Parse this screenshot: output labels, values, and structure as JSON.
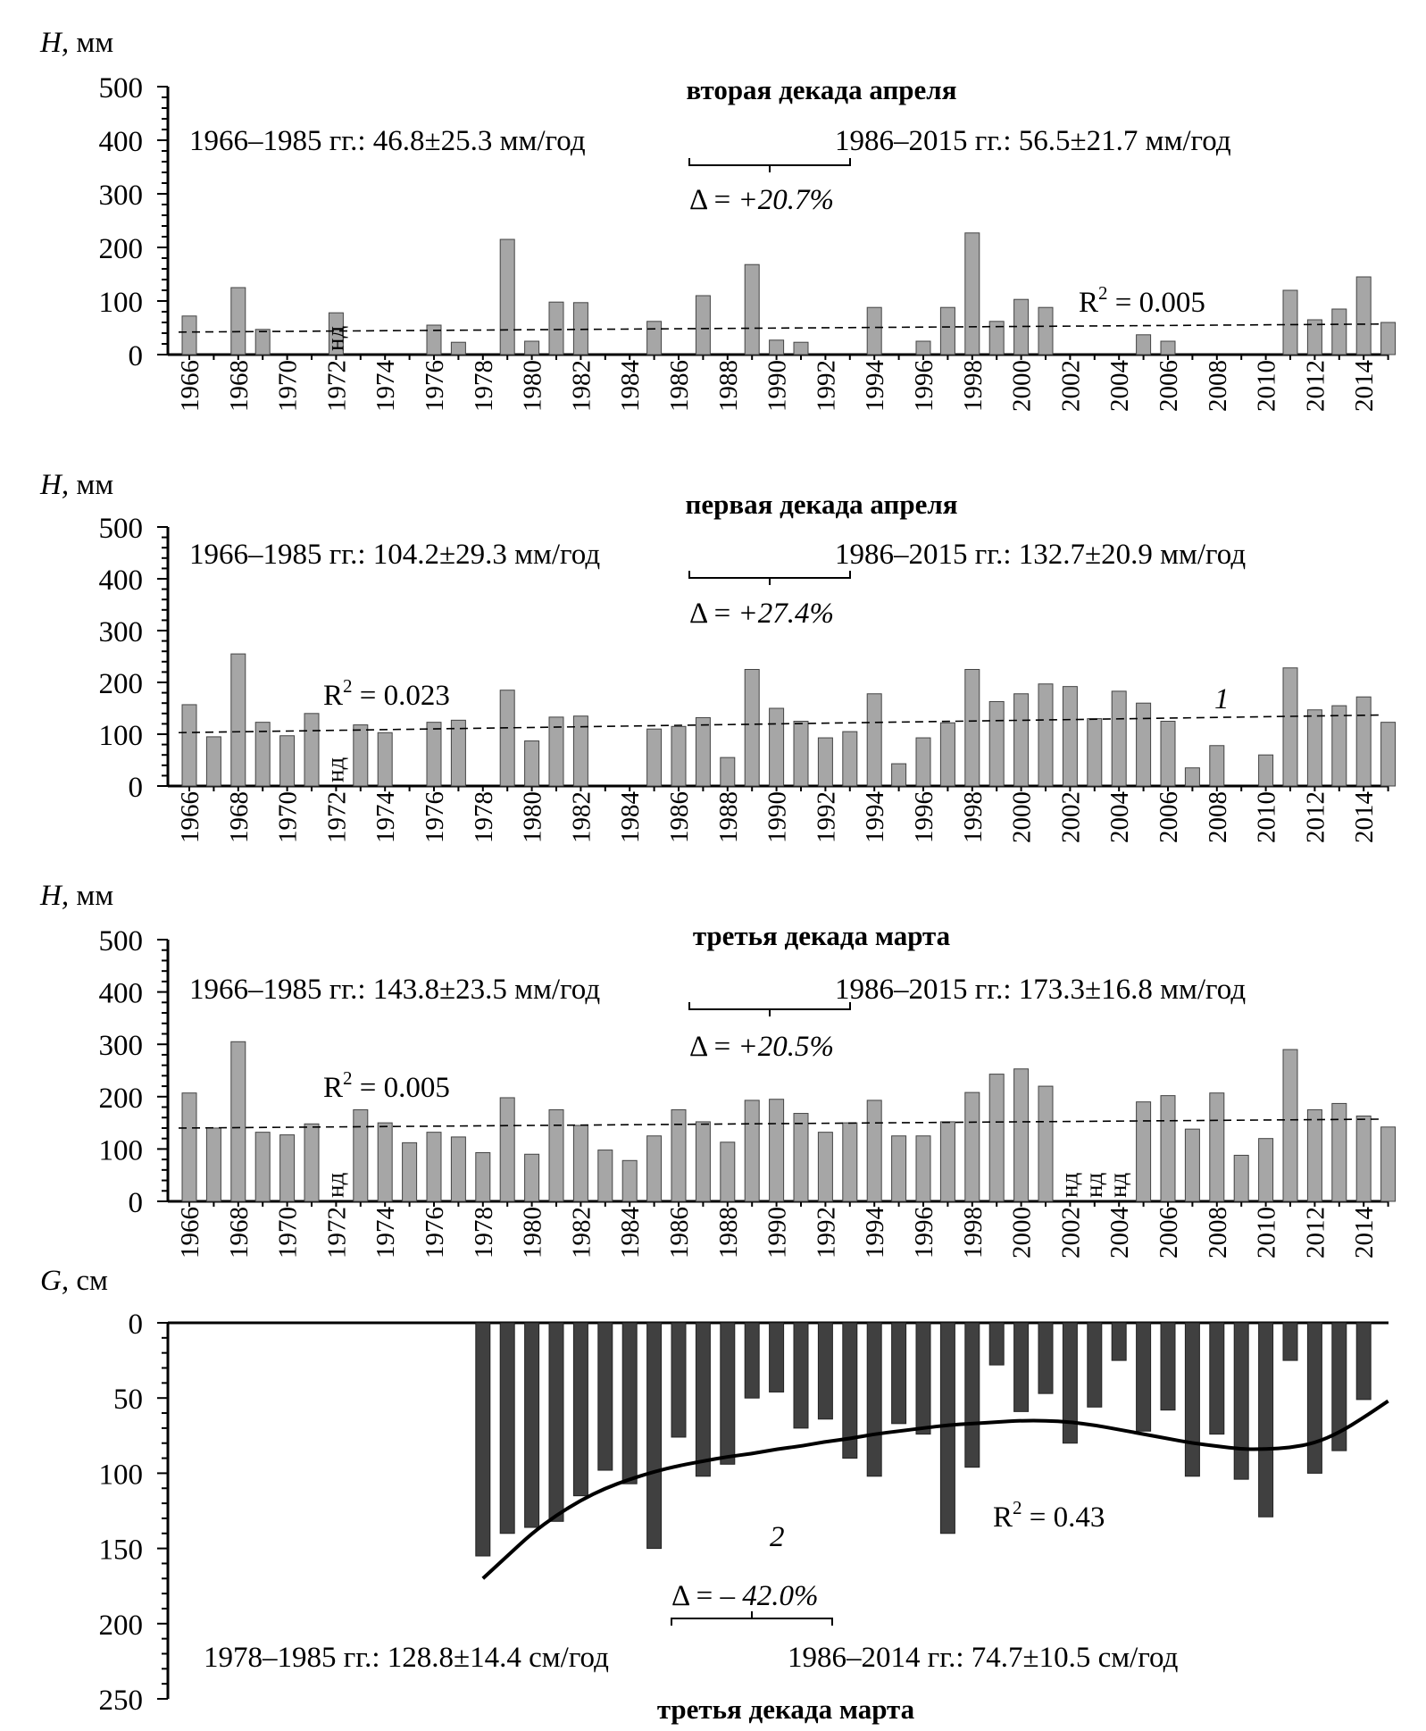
{
  "chart_data": [
    {
      "type": "bar",
      "title": "вторая декада апреля",
      "y_label_symbol": "H,",
      "y_label_unit": "мм",
      "ylim": [
        0,
        500
      ],
      "y_ticks": [
        "0",
        "100",
        "200",
        "300",
        "400",
        "500"
      ],
      "x_tick_labels": [
        "1966",
        "1968",
        "1970",
        "1972",
        "1974",
        "1976",
        "1978",
        "1980",
        "1982",
        "1984",
        "1986",
        "1988",
        "1990",
        "1992",
        "1994",
        "1996",
        "1998",
        "2000",
        "2002",
        "2004",
        "2006",
        "2008",
        "2010",
        "2012",
        "2014"
      ],
      "years": [
        1966,
        1967,
        1968,
        1969,
        1970,
        1971,
        1972,
        1973,
        1974,
        1975,
        1976,
        1977,
        1978,
        1979,
        1980,
        1981,
        1982,
        1983,
        1984,
        1985,
        1986,
        1987,
        1988,
        1989,
        1990,
        1991,
        1992,
        1993,
        1994,
        1995,
        1996,
        1997,
        1998,
        1999,
        2000,
        2001,
        2002,
        2003,
        2004,
        2005,
        2006,
        2007,
        2008,
        2009,
        2010,
        2011,
        2012,
        2013,
        2014,
        2015
      ],
      "values": [
        72,
        0,
        125,
        47,
        0,
        0,
        78,
        0,
        0,
        0,
        55,
        23,
        0,
        215,
        25,
        98,
        97,
        0,
        0,
        62,
        0,
        110,
        0,
        168,
        27,
        23,
        0,
        0,
        88,
        0,
        25,
        88,
        227,
        62,
        103,
        88,
        0,
        0,
        0,
        37,
        25,
        0,
        0,
        0,
        0,
        120,
        65,
        85,
        145,
        60
      ],
      "nd_years": [
        1972
      ],
      "nd_label": "нд",
      "trend": {
        "start": 42,
        "end": 57
      },
      "r2_label": "R",
      "r2_sup": "2",
      "r2_value": " = 0.005",
      "period1_text": "1966–1985 гг.: 46.8±25.3 мм/год",
      "period2_text": "1986–2015 гг.: 56.5±21.7 мм/год",
      "delta_prefix": "Δ = ",
      "delta_value": "+20.7%"
    },
    {
      "type": "bar",
      "title": "первая декада апреля",
      "y_label_symbol": "H,",
      "y_label_unit": "мм",
      "ylim": [
        0,
        500
      ],
      "y_ticks": [
        "0",
        "100",
        "200",
        "300",
        "400",
        "500"
      ],
      "x_tick_labels": [
        "1966",
        "1968",
        "1970",
        "1972",
        "1974",
        "1976",
        "1978",
        "1980",
        "1982",
        "1984",
        "1986",
        "1988",
        "1990",
        "1992",
        "1994",
        "1996",
        "1998",
        "2000",
        "2002",
        "2004",
        "2006",
        "2008",
        "2010",
        "2012",
        "2014"
      ],
      "years": [
        1966,
        1967,
        1968,
        1969,
        1970,
        1971,
        1972,
        1973,
        1974,
        1975,
        1976,
        1977,
        1978,
        1979,
        1980,
        1981,
        1982,
        1983,
        1984,
        1985,
        1986,
        1987,
        1988,
        1989,
        1990,
        1991,
        1992,
        1993,
        1994,
        1995,
        1996,
        1997,
        1998,
        1999,
        2000,
        2001,
        2002,
        2003,
        2004,
        2005,
        2006,
        2007,
        2008,
        2009,
        2010,
        2011,
        2012,
        2013,
        2014,
        2015
      ],
      "values": [
        157,
        95,
        255,
        123,
        97,
        140,
        0,
        118,
        103,
        0,
        123,
        127,
        0,
        185,
        87,
        133,
        135,
        0,
        0,
        110,
        115,
        132,
        55,
        225,
        150,
        125,
        93,
        105,
        178,
        43,
        93,
        122,
        225,
        163,
        178,
        197,
        192,
        130,
        183,
        160,
        125,
        35,
        78,
        0,
        60,
        228,
        147,
        155,
        172,
        123
      ],
      "nd_years": [
        1972
      ],
      "nd_label": "нд",
      "trend": {
        "start": 103,
        "end": 137
      },
      "r2_label": "R",
      "r2_sup": "2",
      "r2_value": " = 0.023",
      "curve_number": "1",
      "period1_text": "1966–1985 гг.: 104.2±29.3 мм/год",
      "period2_text": "1986–2015 гг.: 132.7±20.9 мм/год",
      "delta_prefix": "Δ = ",
      "delta_value": "+27.4%"
    },
    {
      "type": "bar",
      "title": "третья декада марта",
      "y_label_symbol": "H,",
      "y_label_unit": "мм",
      "ylim": [
        0,
        500
      ],
      "y_ticks": [
        "0",
        "100",
        "200",
        "300",
        "400",
        "500"
      ],
      "x_tick_labels": [
        "1966",
        "1968",
        "1970",
        "1972",
        "1974",
        "1976",
        "1978",
        "1980",
        "1982",
        "1984",
        "1986",
        "1988",
        "1990",
        "1992",
        "1994",
        "1996",
        "1998",
        "2000",
        "2002",
        "2004",
        "2006",
        "2008",
        "2010",
        "2012",
        "2014"
      ],
      "years": [
        1966,
        1967,
        1968,
        1969,
        1970,
        1971,
        1972,
        1973,
        1974,
        1975,
        1976,
        1977,
        1978,
        1979,
        1980,
        1981,
        1982,
        1983,
        1984,
        1985,
        1986,
        1987,
        1988,
        1989,
        1990,
        1991,
        1992,
        1993,
        1994,
        1995,
        1996,
        1997,
        1998,
        1999,
        2000,
        2001,
        2002,
        2003,
        2004,
        2005,
        2006,
        2007,
        2008,
        2009,
        2010,
        2011,
        2012,
        2013,
        2014,
        2015
      ],
      "values": [
        207,
        140,
        305,
        132,
        127,
        148,
        0,
        175,
        150,
        112,
        132,
        123,
        93,
        198,
        90,
        175,
        145,
        98,
        78,
        125,
        175,
        152,
        113,
        193,
        195,
        168,
        132,
        150,
        193,
        125,
        125,
        152,
        208,
        243,
        253,
        220,
        0,
        0,
        0,
        190,
        202,
        138,
        207,
        88,
        120,
        290,
        175,
        187,
        163,
        142
      ],
      "nd_years": [
        1972,
        2002,
        2003,
        2004
      ],
      "nd_label": "нд",
      "trend": {
        "start": 140,
        "end": 157
      },
      "r2_label": "R",
      "r2_sup": "2",
      "r2_value": " = 0.005",
      "period1_text": "1966–1985 гг.: 143.8±23.5 мм/год",
      "period2_text": "1986–2015 гг.: 173.3±16.8 мм/год",
      "delta_prefix": "Δ = ",
      "delta_value": "+20.5%"
    },
    {
      "type": "bar",
      "title": "третья декада марта",
      "y_label_symbol": "G,",
      "y_label_unit": "см",
      "ylim": [
        0,
        250
      ],
      "y_inverted": true,
      "y_ticks": [
        "0",
        "50",
        "100",
        "150",
        "200",
        "250"
      ],
      "years": [
        1978,
        1979,
        1980,
        1981,
        1982,
        1983,
        1984,
        1985,
        1986,
        1987,
        1988,
        1989,
        1990,
        1991,
        1992,
        1993,
        1994,
        1995,
        1996,
        1997,
        1998,
        1999,
        2000,
        2001,
        2002,
        2003,
        2004,
        2005,
        2006,
        2007,
        2008,
        2009,
        2010,
        2011,
        2012,
        2013,
        2014
      ],
      "values": [
        155,
        140,
        136,
        132,
        115,
        98,
        107,
        150,
        76,
        102,
        94,
        50,
        46,
        70,
        64,
        90,
        102,
        67,
        74,
        140,
        96,
        28,
        59,
        47,
        80,
        56,
        25,
        72,
        58,
        102,
        74,
        104,
        129,
        25,
        100,
        85,
        51
      ],
      "trend_curve": [
        [
          1978,
          170
        ],
        [
          1979,
          155
        ],
        [
          1980,
          140
        ],
        [
          1981,
          128
        ],
        [
          1982,
          118
        ],
        [
          1983,
          110
        ],
        [
          1984,
          104
        ],
        [
          1985,
          99
        ],
        [
          1986,
          95
        ],
        [
          1987,
          92
        ],
        [
          1988,
          89
        ],
        [
          1989,
          87
        ],
        [
          1990,
          84
        ],
        [
          1991,
          82
        ],
        [
          1992,
          79
        ],
        [
          1993,
          77
        ],
        [
          1994,
          74
        ],
        [
          1995,
          72
        ],
        [
          1996,
          70
        ],
        [
          1997,
          68
        ],
        [
          1998,
          67
        ],
        [
          1999,
          66
        ],
        [
          2000,
          65
        ],
        [
          2001,
          65
        ],
        [
          2002,
          66
        ],
        [
          2003,
          68
        ],
        [
          2004,
          71
        ],
        [
          2005,
          74
        ],
        [
          2006,
          77
        ],
        [
          2007,
          80
        ],
        [
          2008,
          82
        ],
        [
          2009,
          84
        ],
        [
          2010,
          84
        ],
        [
          2011,
          83
        ],
        [
          2012,
          80
        ],
        [
          2013,
          73
        ],
        [
          2014,
          63
        ],
        [
          2015,
          52
        ]
      ],
      "r2_label": "R",
      "r2_sup": "2",
      "r2_value": " = 0.43",
      "curve_number": "2",
      "period1_text": "1978–1985 гг.: 128.8±14.4 см/год",
      "period2_text": "1986–2014 гг.: 74.7±10.5 см/год",
      "delta_prefix": "Δ = ",
      "delta_value": "– 42.0%"
    }
  ]
}
